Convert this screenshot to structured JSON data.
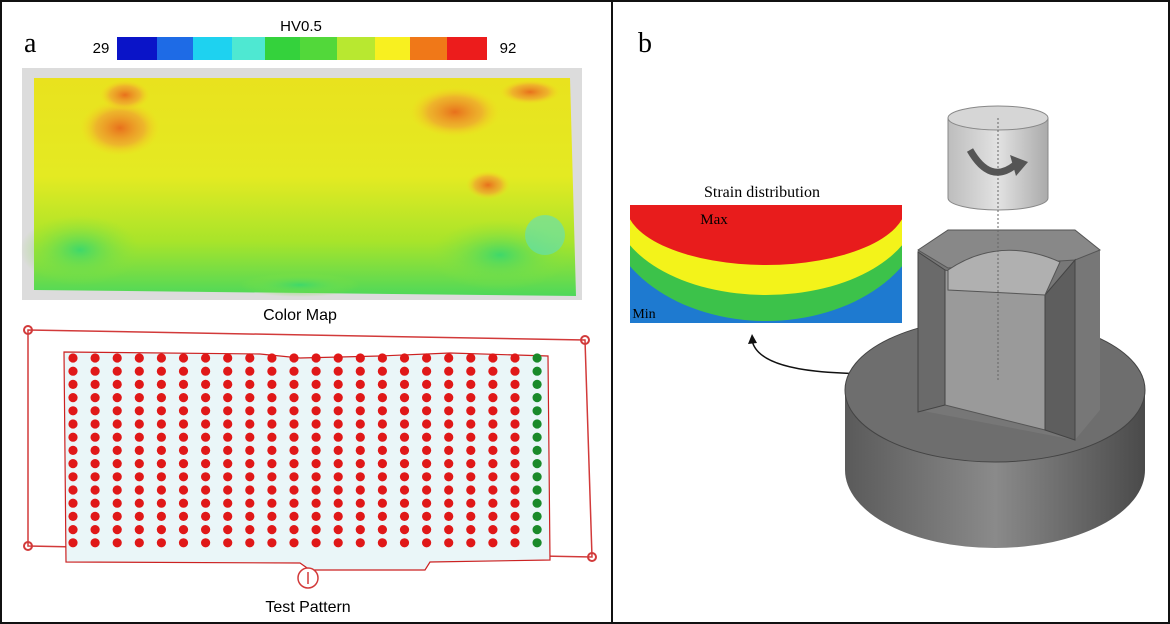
{
  "panel_a": {
    "label": "a",
    "colorbar": {
      "title": "HV0.5",
      "min_label": "29",
      "max_label": "92"
    },
    "color_map_caption": "Color Map",
    "test_pattern_caption": "Test Pattern"
  },
  "panel_b": {
    "label": "b",
    "strain": {
      "title": "Strain distribution",
      "max_label": "Max",
      "min_label": "Min"
    }
  }
}
